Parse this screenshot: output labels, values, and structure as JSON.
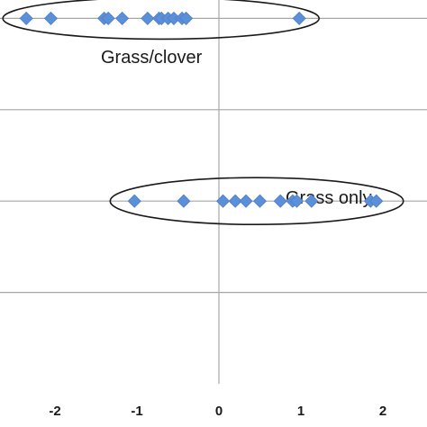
{
  "chart_data": {
    "type": "scatter",
    "x_tick_labels": [
      "-2",
      "-1",
      "0",
      "1",
      "2"
    ],
    "xlim": [
      -2.65,
      2.55
    ],
    "ylim": [
      0,
      5
    ],
    "y_gridlines": [
      1,
      2,
      3,
      4,
      5
    ],
    "grid": true,
    "marker": "diamond",
    "colors": {
      "point": "#5b8fd9",
      "grid": "#a6a6a6",
      "ellipse": "#1a1a1a"
    },
    "series": [
      {
        "label": "Grass/clover",
        "y": 4,
        "x": [
          -2.35,
          -2.05,
          -1.4,
          -1.35,
          -1.18,
          -0.87,
          -0.73,
          -0.7,
          -0.62,
          -0.55,
          -0.45,
          -0.4,
          0.98
        ]
      },
      {
        "label": "Grass only",
        "y": 2,
        "x": [
          -1.03,
          -0.43,
          0.05,
          0.2,
          0.33,
          0.5,
          0.75,
          0.9,
          0.95,
          1.13,
          1.85,
          1.92
        ]
      }
    ],
    "annotations": [
      {
        "text": "Grass/clover",
        "series_index": 0
      },
      {
        "text": "Grass only",
        "series_index": 1
      }
    ]
  }
}
